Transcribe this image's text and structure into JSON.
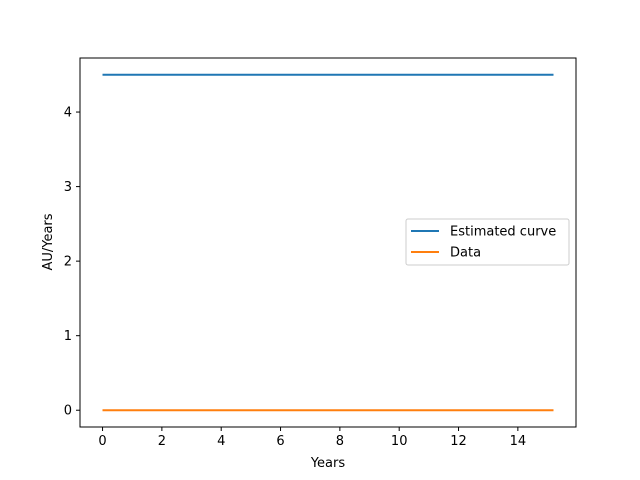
{
  "chart_data": {
    "type": "line",
    "title": "",
    "xlabel": "Years",
    "ylabel": "AU/Years",
    "xlim": [
      -0.76,
      15.96
    ],
    "ylim": [
      -0.225,
      4.725
    ],
    "xticks": [
      0,
      2,
      4,
      6,
      8,
      10,
      12,
      14
    ],
    "yticks": [
      0,
      1,
      2,
      3,
      4
    ],
    "grid": false,
    "legend_position": "center-right",
    "series": [
      {
        "name": "Estimated curve",
        "color": "#1f77b4",
        "x": [
          0,
          15.2
        ],
        "y": [
          4.5,
          4.5
        ]
      },
      {
        "name": "Data",
        "color": "#ff7f0e",
        "x": [
          0,
          15.2
        ],
        "y": [
          0,
          0
        ]
      }
    ]
  }
}
